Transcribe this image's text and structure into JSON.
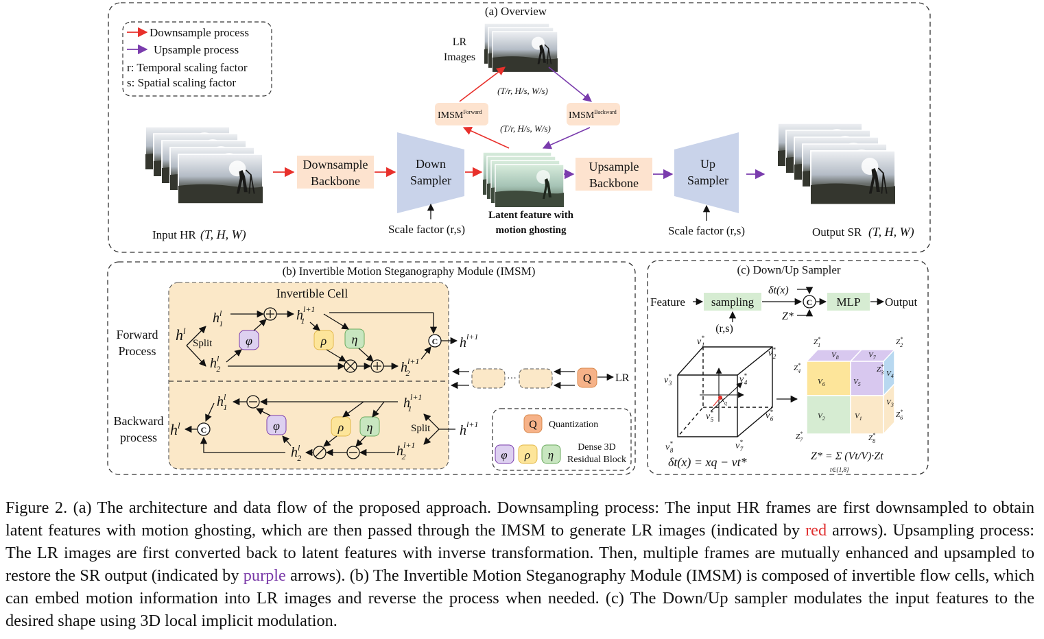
{
  "overview": {
    "title": "(a) Overview",
    "legend": {
      "down": "Downsample process",
      "up": "Upsample process",
      "r": "r: Temporal scaling factor",
      "s": "s: Spatial scaling factor"
    },
    "lr_images_line1": "LR",
    "lr_images_line2": "Images",
    "imsm_forward": "IMSM",
    "imsm_forward_sup": "Forward",
    "imsm_backward": "IMSM",
    "imsm_backward_sup": "Backward",
    "shape_top": "(T/r, H/s, W/s)",
    "shape_bottom": "(T/r, H/s, W/s)",
    "input_label": "Input HR",
    "input_shape": "(T, H, W)",
    "downsample_backbone_1": "Downsample",
    "downsample_backbone_2": "Backbone",
    "down_sampler_1": "Down",
    "down_sampler_2": "Sampler",
    "scale_factor_left": "Scale factor (r,s)",
    "latent_1": "Latent feature with",
    "latent_2": "motion ghosting",
    "upsample_backbone_1": "Upsample",
    "upsample_backbone_2": "Backbone",
    "up_sampler_1": "Up",
    "up_sampler_2": "Sampler",
    "scale_factor_right": "Scale factor (r,s)",
    "output_label": "Output SR",
    "output_shape": "(T, H, W)"
  },
  "imsm": {
    "title": "(b) Invertible Motion Steganography Module (IMSM)",
    "cell_title": "Invertible Cell",
    "forward_1": "Forward",
    "forward_2": "Process",
    "backward_1": "Backward",
    "backward_2": "process",
    "split": "Split",
    "split_b": "Split",
    "phi": "φ",
    "rho": "ρ",
    "eta": "η",
    "q": "Q",
    "lr": "LR",
    "dots": "···",
    "quantization": "Quantization",
    "dense_1": "Dense 3D",
    "dense_2": "Residual Block",
    "c": "C"
  },
  "sampler": {
    "title": "(c) Down/Up Sampler",
    "feature": "Feature",
    "sampling": "sampling",
    "rs": "(r,s)",
    "delta": "δt(x)",
    "zstar": "Z*",
    "mlp": "MLP",
    "output": "Output",
    "formula_left": "δt(x) = xq − vt*",
    "formula_right": "Z* = Σ (Vt/V)·Zt",
    "formula_right_sub": "t∈{1,8}"
  },
  "caption": {
    "p1": "Figure 2. (a) The architecture and data flow of the proposed approach. Downsampling process: The input HR frames are first downsampled to obtain latent features with motion ghosting, which are then passed through the IMSM to generate LR images (indicated by ",
    "red_word": "red",
    "p2": " arrows). Upsampling process: The LR images are first converted back to latent features with inverse transformation. Then, multiple frames are mutually enhanced and upsampled to restore the SR output (indicated by ",
    "purple_word": "purple",
    "p3": " arrows). (b) The Invertible Motion Steganography Module (IMSM) is composed of invertible flow cells, which can embed motion information into LR images and reverse the process when needed. (c) The Down/Up sampler modulates the input features to the desired shape using 3D local implicit modulation."
  },
  "colors": {
    "red_arrow": "#e8302b",
    "purple_arrow": "#7a3cad",
    "peach": "#fde3cf",
    "cell_bg": "#fbe8c8",
    "sampler_block": "#c9d3ea",
    "phi": "#ddd0f0",
    "rho": "#fde59a",
    "eta": "#c8e6c0",
    "q": "#f6b288"
  }
}
